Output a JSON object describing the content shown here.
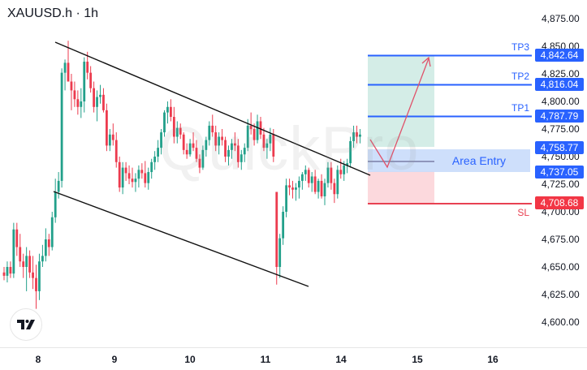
{
  "header": {
    "symbol": "XAUUSD.h",
    "separator": "·",
    "timeframe": "1h"
  },
  "watermark": "QuickPro",
  "colors": {
    "up": "#22a08a",
    "down": "#ec3b4e",
    "target_line": "#2962ff",
    "target_label_bg": "#2962ff",
    "stop_line": "#e84152",
    "stop_label_bg": "#f23645",
    "entry_zone": "#c9dcfb",
    "profit_zone": "#d4ede7",
    "loss_zone": "#fcd9dd",
    "arrow": "#e0526a",
    "channel": "#000000",
    "axis_text": "#131722"
  },
  "levels": {
    "tp3": {
      "label": "TP3",
      "price": "4,842.64"
    },
    "tp2": {
      "label": "TP2",
      "price": "4,816.04"
    },
    "tp1": {
      "label": "TP1",
      "price": "4,787.79"
    },
    "entry_top": {
      "price": "4,758.77"
    },
    "entry_bottom": {
      "price": "4,737.05"
    },
    "entry_label": "Area Entry",
    "sl": {
      "label": "SL",
      "price": "4,708.68"
    }
  },
  "chart_data": {
    "type": "candlestick",
    "title": "XAUUSD.h · 1h",
    "xlabel": "",
    "ylabel": "",
    "ylim": [
      4587,
      4887
    ],
    "y_ticks": [
      "4,875.00",
      "4,850.00",
      "4,825.00",
      "4,800.00",
      "4,775.00",
      "4,750.00",
      "4,725.00",
      "4,700.00",
      "4,675.00",
      "4,650.00",
      "4,625.00",
      "4,600.00"
    ],
    "x_ticks": [
      "8",
      "9",
      "10",
      "11",
      "14",
      "15",
      "16"
    ],
    "grid": false,
    "annotations": [
      {
        "type": "hline",
        "label": "TP3",
        "value": 4842.64
      },
      {
        "type": "hline",
        "label": "TP2",
        "value": 4816.04
      },
      {
        "type": "hline",
        "label": "TP1",
        "value": 4787.79
      },
      {
        "type": "zone",
        "label": "Area Entry",
        "from": 4737.05,
        "to": 4758.77
      },
      {
        "type": "hline",
        "label": "SL",
        "value": 4708.68
      },
      {
        "type": "channel",
        "label": "descending channel"
      },
      {
        "type": "arrow",
        "label": "projected path: dip into entry then rally to TP3"
      }
    ],
    "ohlc": [
      [
        4645,
        4650,
        4638,
        4642
      ],
      [
        4642,
        4655,
        4636,
        4650
      ],
      [
        4650,
        4655,
        4640,
        4644
      ],
      [
        4644,
        4690,
        4640,
        4684
      ],
      [
        4684,
        4690,
        4660,
        4668
      ],
      [
        4668,
        4680,
        4650,
        4655
      ],
      [
        4655,
        4662,
        4640,
        4650
      ],
      [
        4650,
        4668,
        4628,
        4660
      ],
      [
        4660,
        4665,
        4640,
        4645
      ],
      [
        4645,
        4660,
        4630,
        4640
      ],
      [
        4640,
        4652,
        4612,
        4628
      ],
      [
        4628,
        4662,
        4620,
        4655
      ],
      [
        4655,
        4670,
        4650,
        4660
      ],
      [
        4660,
        4685,
        4655,
        4675
      ],
      [
        4675,
        4680,
        4660,
        4668
      ],
      [
        4668,
        4700,
        4665,
        4695
      ],
      [
        4695,
        4730,
        4690,
        4718
      ],
      [
        4718,
        4736,
        4712,
        4728
      ],
      [
        4728,
        4830,
        4722,
        4826
      ],
      [
        4826,
        4838,
        4810,
        4835
      ],
      [
        4835,
        4855,
        4818,
        4818
      ],
      [
        4818,
        4825,
        4792,
        4810
      ],
      [
        4810,
        4818,
        4795,
        4802
      ],
      [
        4802,
        4810,
        4788,
        4795
      ],
      [
        4795,
        4812,
        4785,
        4800
      ],
      [
        4800,
        4840,
        4790,
        4836
      ],
      [
        4836,
        4845,
        4820,
        4826
      ],
      [
        4826,
        4832,
        4808,
        4812
      ],
      [
        4812,
        4818,
        4790,
        4795
      ],
      [
        4795,
        4810,
        4782,
        4804
      ],
      [
        4804,
        4815,
        4798,
        4806
      ],
      [
        4806,
        4812,
        4790,
        4792
      ],
      [
        4792,
        4798,
        4755,
        4760
      ],
      [
        4760,
        4775,
        4755,
        4770
      ],
      [
        4770,
        4780,
        4760,
        4765
      ],
      [
        4765,
        4772,
        4740,
        4745
      ],
      [
        4745,
        4750,
        4718,
        4722
      ],
      [
        4722,
        4745,
        4716,
        4740
      ],
      [
        4740,
        4745,
        4728,
        4735
      ],
      [
        4735,
        4742,
        4725,
        4730
      ],
      [
        4730,
        4740,
        4722,
        4727
      ],
      [
        4727,
        4735,
        4718,
        4730
      ],
      [
        4730,
        4742,
        4722,
        4738
      ],
      [
        4738,
        4744,
        4730,
        4735
      ],
      [
        4735,
        4746,
        4722,
        4726
      ],
      [
        4726,
        4740,
        4720,
        4736
      ],
      [
        4736,
        4748,
        4730,
        4745
      ],
      [
        4745,
        4755,
        4738,
        4750
      ],
      [
        4750,
        4765,
        4745,
        4758
      ],
      [
        4758,
        4775,
        4752,
        4772
      ],
      [
        4772,
        4792,
        4768,
        4790
      ],
      [
        4790,
        4800,
        4780,
        4795
      ],
      [
        4795,
        4802,
        4782,
        4786
      ],
      [
        4786,
        4795,
        4762,
        4768
      ],
      [
        4768,
        4782,
        4762,
        4776
      ],
      [
        4776,
        4780,
        4766,
        4770
      ],
      [
        4770,
        4772,
        4752,
        4756
      ],
      [
        4756,
        4762,
        4748,
        4752
      ],
      [
        4752,
        4766,
        4750,
        4762
      ],
      [
        4762,
        4772,
        4755,
        4758
      ],
      [
        4758,
        4765,
        4745,
        4748
      ],
      [
        4748,
        4752,
        4735,
        4740
      ],
      [
        4740,
        4760,
        4738,
        4756
      ],
      [
        4756,
        4768,
        4750,
        4765
      ],
      [
        4765,
        4782,
        4760,
        4778
      ],
      [
        4778,
        4788,
        4768,
        4772
      ],
      [
        4772,
        4778,
        4755,
        4760
      ],
      [
        4760,
        4772,
        4752,
        4768
      ],
      [
        4768,
        4775,
        4760,
        4765
      ],
      [
        4765,
        4768,
        4745,
        4750
      ],
      [
        4750,
        4760,
        4742,
        4756
      ],
      [
        4756,
        4766,
        4748,
        4762
      ],
      [
        4762,
        4772,
        4755,
        4760
      ],
      [
        4760,
        4766,
        4740,
        4745
      ],
      [
        4745,
        4756,
        4738,
        4752
      ],
      [
        4752,
        4762,
        4745,
        4758
      ],
      [
        4758,
        4784,
        4755,
        4778
      ],
      [
        4778,
        4790,
        4770,
        4775
      ],
      [
        4775,
        4780,
        4760,
        4765
      ],
      [
        4765,
        4788,
        4762,
        4782
      ],
      [
        4782,
        4786,
        4766,
        4770
      ],
      [
        4770,
        4776,
        4755,
        4758
      ],
      [
        4758,
        4766,
        4748,
        4762
      ],
      [
        4762,
        4776,
        4755,
        4770
      ],
      [
        4770,
        4775,
        4745,
        4750
      ],
      [
        4718,
        4718,
        4634,
        4650
      ],
      [
        4650,
        4680,
        4640,
        4676
      ],
      [
        4676,
        4705,
        4670,
        4700
      ],
      [
        4700,
        4730,
        4695,
        4724
      ],
      [
        4724,
        4730,
        4715,
        4722
      ],
      [
        4722,
        4728,
        4712,
        4720
      ],
      [
        4720,
        4726,
        4710,
        4722
      ],
      [
        4722,
        4732,
        4712,
        4728
      ],
      [
        4728,
        4736,
        4720,
        4734
      ],
      [
        4734,
        4742,
        4728,
        4738
      ],
      [
        4738,
        4740,
        4722,
        4726
      ],
      [
        4726,
        4736,
        4718,
        4732
      ],
      [
        4732,
        4738,
        4716,
        4718
      ],
      [
        4718,
        4730,
        4712,
        4728
      ],
      [
        4728,
        4734,
        4712,
        4714
      ],
      [
        4714,
        4730,
        4706,
        4726
      ],
      [
        4726,
        4745,
        4722,
        4740
      ],
      [
        4740,
        4745,
        4720,
        4726
      ],
      [
        4726,
        4730,
        4708,
        4716
      ],
      [
        4716,
        4742,
        4712,
        4738
      ],
      [
        4738,
        4748,
        4730,
        4734
      ],
      [
        4734,
        4746,
        4728,
        4742
      ],
      [
        4742,
        4748,
        4735,
        4744
      ],
      [
        4744,
        4768,
        4740,
        4764
      ],
      [
        4764,
        4778,
        4758,
        4772
      ],
      [
        4772,
        4778,
        4762,
        4768
      ],
      [
        4768,
        4775,
        4762,
        4770
      ]
    ]
  }
}
